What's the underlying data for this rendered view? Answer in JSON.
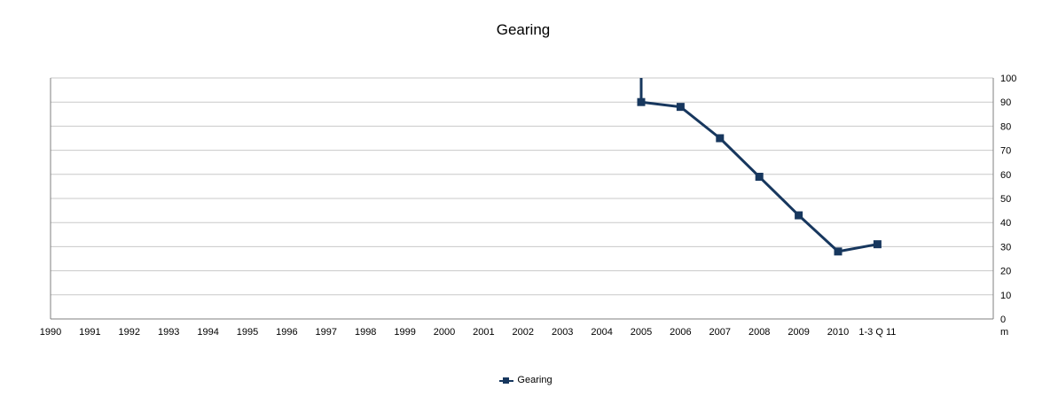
{
  "chart": {
    "title": "Gearing",
    "legend_label": "Gearing"
  },
  "chart_data": {
    "type": "line",
    "title": "Gearing",
    "categories": [
      "1990",
      "1991",
      "1992",
      "1993",
      "1994",
      "1995",
      "1996",
      "1997",
      "1998",
      "1999",
      "2000",
      "2001",
      "2002",
      "2003",
      "2004",
      "2005",
      "2006",
      "2007",
      "2008",
      "2009",
      "2010",
      "1-3 Q 11"
    ],
    "series": [
      {
        "name": "Gearing",
        "color": "#17375E",
        "marker": "square",
        "values": [
          null,
          null,
          null,
          null,
          null,
          null,
          null,
          null,
          null,
          null,
          null,
          null,
          null,
          null,
          null,
          90,
          88,
          75,
          59,
          43,
          28,
          31
        ]
      }
    ],
    "spike": {
      "category": "2005",
      "from": 90,
      "to": 100
    },
    "ylim": [
      0,
      100
    ],
    "ytick_step": 10,
    "y_axis_side": "right",
    "axis_unit_label": "m",
    "grid": "horizontal",
    "legend_position": "bottom",
    "colors": {
      "gridline": "#C9C9C9",
      "axis": "#7F7F7F",
      "text": "#000000"
    }
  }
}
